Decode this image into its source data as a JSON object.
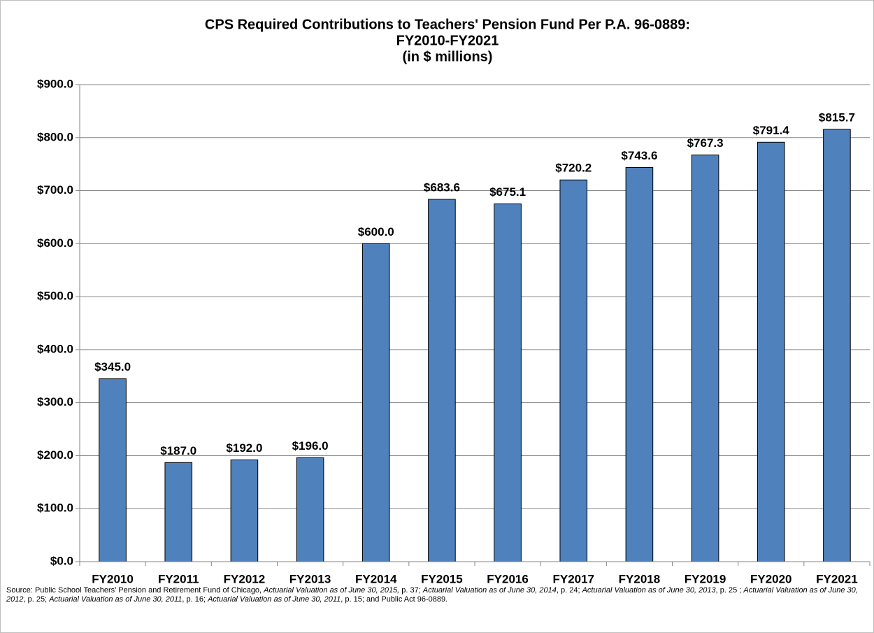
{
  "chart_data": {
    "type": "bar",
    "title": [
      "CPS Required Contributions to Teachers' Pension Fund Per P.A. 96-0889:",
      "FY2010-FY2021",
      "(in $ millions)"
    ],
    "categories": [
      "FY2010",
      "FY2011",
      "FY2012",
      "FY2013",
      "FY2014",
      "FY2015",
      "FY2016",
      "FY2017",
      "FY2018",
      "FY2019",
      "FY2020",
      "FY2021"
    ],
    "values": [
      345.0,
      187.0,
      192.0,
      196.0,
      600.0,
      683.6,
      675.1,
      720.2,
      743.6,
      767.3,
      791.4,
      815.7
    ],
    "value_labels": [
      "$345.0",
      "$187.0",
      "$192.0",
      "$196.0",
      "$600.0",
      "$683.6",
      "$675.1",
      "$720.2",
      "$743.6",
      "$767.3",
      "$791.4",
      "$815.7"
    ],
    "color": "#4f81bd",
    "ylim": [
      0,
      900
    ],
    "yticks": [
      {
        "value": 0,
        "label": "$0.0"
      },
      {
        "value": 100,
        "label": "$100.0"
      },
      {
        "value": 200,
        "label": "$200.0"
      },
      {
        "value": 300,
        "label": "$300.0"
      },
      {
        "value": 400,
        "label": "$400.0"
      },
      {
        "value": 500,
        "label": "$500.0"
      },
      {
        "value": 600,
        "label": "$600.0"
      },
      {
        "value": 700,
        "label": "$700.0"
      },
      {
        "value": 800,
        "label": "$800.0"
      },
      {
        "value": 900,
        "label": "$900.0"
      }
    ],
    "grid": true,
    "source": [
      {
        "text": "Source: Public School Teachers' Pension and Retirement Fund of Chicago, ",
        "italic": false
      },
      {
        "text": "Actuarial Valuation as of  June 30, 2015,",
        "italic": true
      },
      {
        "text": " p. 37; ",
        "italic": false
      },
      {
        "text": "Actuarial Valuation as of June 30, 2014",
        "italic": true
      },
      {
        "text": ", p. 24; ",
        "italic": false
      },
      {
        "text": "Actuarial Valuation as of June 30, 2013",
        "italic": true
      },
      {
        "text": ", p. 25 ; ",
        "italic": false
      },
      {
        "text": "Actuarial Valuation as of June 30, 2012",
        "italic": true
      },
      {
        "text": ", p. 25; ",
        "italic": false
      },
      {
        "text": "Actuarial Valuation as of June 30, 2011",
        "italic": true
      },
      {
        "text": ", p. 16; ",
        "italic": false
      },
      {
        "text": "Actuarial Valuation as of June 30, 2011",
        "italic": true
      },
      {
        "text": ", p. 15; and Public Act 96-0889.",
        "italic": false
      }
    ]
  }
}
